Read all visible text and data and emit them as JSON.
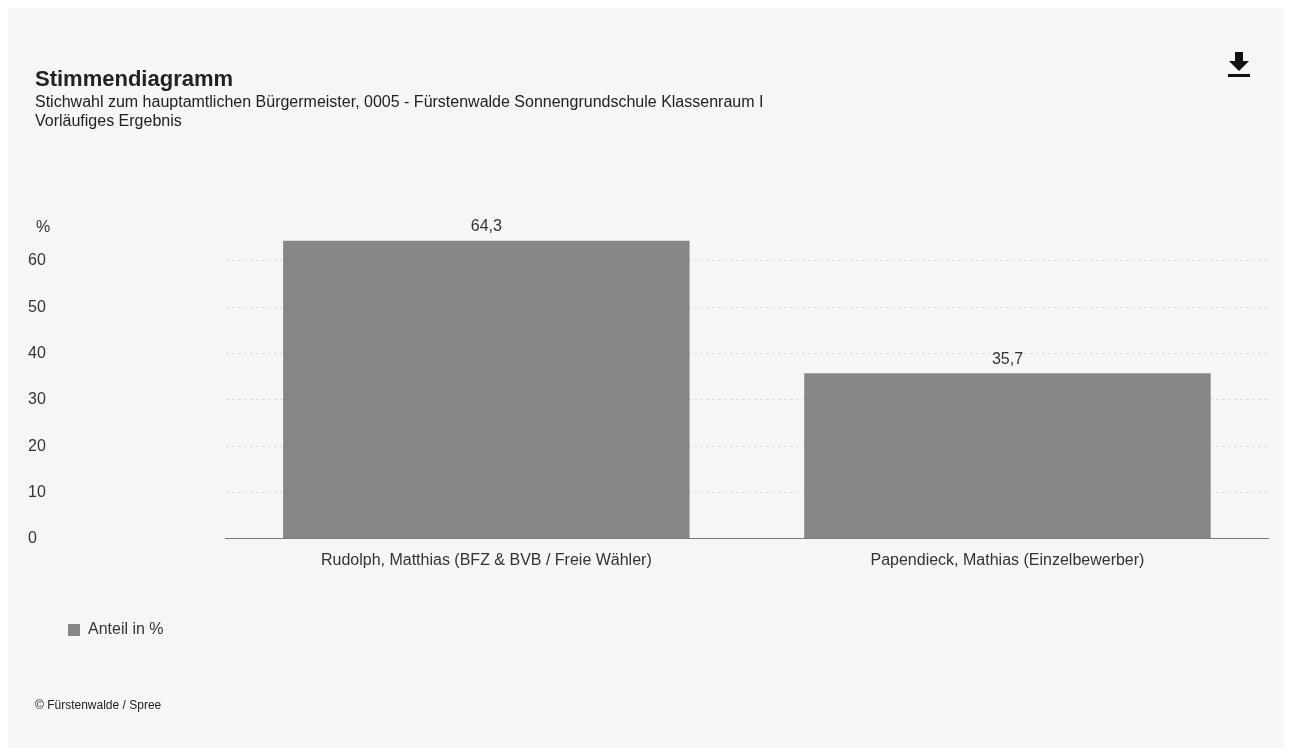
{
  "chart_data": {
    "type": "bar",
    "title": "Stimmendiagramm",
    "subtitle": "Stichwahl zum hauptamtlichen Bürgermeister, 0005 - Fürstenwalde Sonnengrundschule Klassenraum I\nVorläufiges Ergebnis",
    "ylabel": "%",
    "categories": [
      "Rudolph, Matthias (BFZ & BVB / Freie Wähler)",
      "Papendieck, Mathias (Einzelbewerber)"
    ],
    "series": [
      {
        "name": "Anteil in %",
        "color": "#868686",
        "values": [
          64.3,
          35.7
        ],
        "value_labels": [
          "64,3",
          "35,7"
        ]
      }
    ],
    "ylim": [
      0,
      65
    ],
    "yticks": [
      0,
      10,
      20,
      30,
      40,
      50,
      60
    ],
    "grid": "y",
    "legend": "bottom left",
    "annotations": [
      "© Fürstenwalde / Spree"
    ]
  }
}
